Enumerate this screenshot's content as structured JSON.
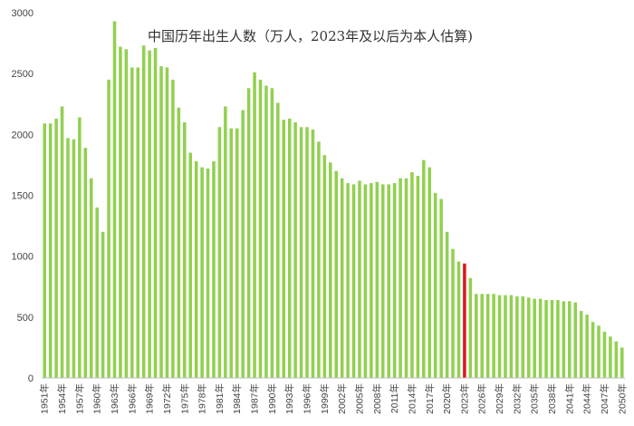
{
  "chart_data": {
    "type": "bar",
    "title": "中国历年出生人数（万人，2023年及以后为本人估算)",
    "xlabel": "",
    "ylabel": "",
    "ylim": [
      0,
      3000
    ],
    "yticks": [
      0,
      500,
      1000,
      1500,
      2000,
      2500,
      3000
    ],
    "grid": false,
    "legend": "none",
    "bar_color": "#92d050",
    "highlight_color": "#e0161a",
    "highlight_category": "2023年",
    "tick_label_categories": [
      "1951年",
      "1954年",
      "1957年",
      "1960年",
      "1963年",
      "1966年",
      "1969年",
      "1972年",
      "1975年",
      "1978年",
      "1981年",
      "1984年",
      "1987年",
      "1990年",
      "1993年",
      "1996年",
      "1999年",
      "2002年",
      "2005年",
      "2008年",
      "2011年",
      "2014年",
      "2017年",
      "2020年",
      "2023年",
      "2026年",
      "2029年",
      "2032年",
      "2035年",
      "2038年",
      "2041年",
      "2044年",
      "2047年",
      "2050年"
    ],
    "categories": [
      "1951年",
      "1952年",
      "1953年",
      "1954年",
      "1955年",
      "1956年",
      "1957年",
      "1958年",
      "1959年",
      "1960年",
      "1961年",
      "1962年",
      "1963年",
      "1964年",
      "1965年",
      "1966年",
      "1967年",
      "1968年",
      "1969年",
      "1970年",
      "1971年",
      "1972年",
      "1973年",
      "1974年",
      "1975年",
      "1976年",
      "1977年",
      "1978年",
      "1979年",
      "1980年",
      "1981年",
      "1982年",
      "1983年",
      "1984年",
      "1985年",
      "1986年",
      "1987年",
      "1988年",
      "1989年",
      "1990年",
      "1991年",
      "1992年",
      "1993年",
      "1994年",
      "1995年",
      "1996年",
      "1997年",
      "1998年",
      "1999年",
      "2000年",
      "2001年",
      "2002年",
      "2003年",
      "2004年",
      "2005年",
      "2006年",
      "2007年",
      "2008年",
      "2009年",
      "2010年",
      "2011年",
      "2012年",
      "2013年",
      "2014年",
      "2015年",
      "2016年",
      "2017年",
      "2018年",
      "2019年",
      "2020年",
      "2021年",
      "2022年",
      "2023年",
      "2024年",
      "2025年",
      "2026年",
      "2027年",
      "2028年",
      "2029年",
      "2030年",
      "2031年",
      "2032年",
      "2033年",
      "2034年",
      "2035年",
      "2036年",
      "2037年",
      "2038年",
      "2039年",
      "2040年",
      "2041年",
      "2042年",
      "2043年",
      "2044年",
      "2045年",
      "2046年",
      "2047年",
      "2048年",
      "2049年",
      "2050年"
    ],
    "values": [
      2090,
      2090,
      2130,
      2230,
      1970,
      1960,
      2140,
      1890,
      1640,
      1400,
      1200,
      2450,
      2930,
      2720,
      2700,
      2550,
      2550,
      2730,
      2690,
      2710,
      2560,
      2550,
      2450,
      2220,
      2100,
      1850,
      1780,
      1730,
      1720,
      1780,
      2060,
      2230,
      2050,
      2050,
      2200,
      2380,
      2510,
      2450,
      2400,
      2380,
      2260,
      2120,
      2130,
      2100,
      2060,
      2060,
      2040,
      1940,
      1830,
      1770,
      1700,
      1640,
      1600,
      1590,
      1620,
      1590,
      1600,
      1610,
      1590,
      1590,
      1600,
      1640,
      1640,
      1690,
      1660,
      1790,
      1730,
      1520,
      1470,
      1200,
      1060,
      956,
      940,
      820,
      690,
      690,
      690,
      690,
      680,
      680,
      680,
      670,
      670,
      660,
      650,
      650,
      640,
      640,
      640,
      630,
      630,
      620,
      550,
      520,
      460,
      430,
      380,
      340,
      300,
      250
    ]
  }
}
